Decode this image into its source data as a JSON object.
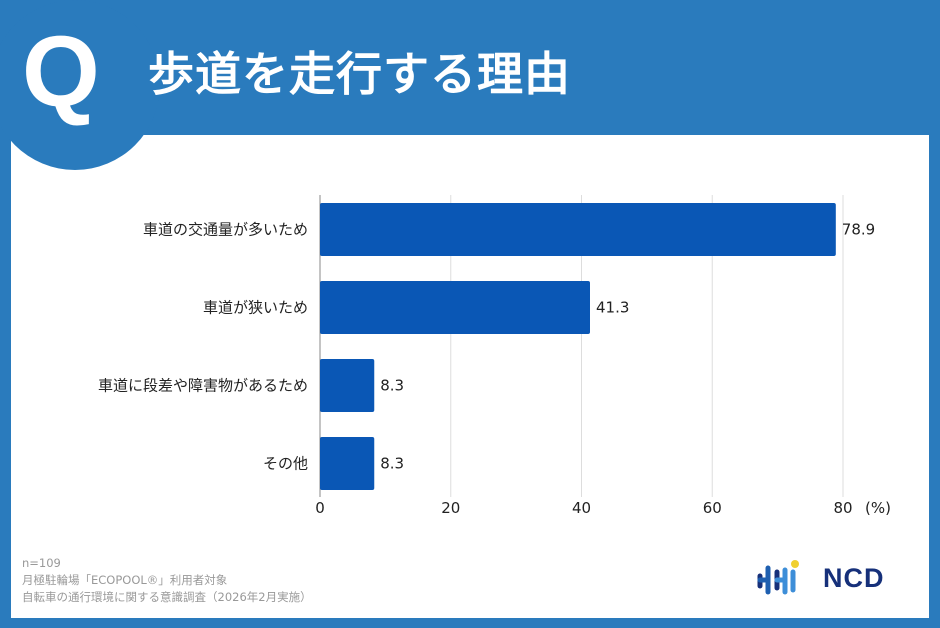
{
  "header": {
    "q_mark": "Q",
    "title": "歩道を走行する理由"
  },
  "chart_data": {
    "type": "bar",
    "orientation": "horizontal",
    "categories": [
      "車道の交通量が多いため",
      "車道が狭いため",
      "車道に段差や障害物があるため",
      "その他"
    ],
    "values": [
      78.9,
      41.3,
      8.3,
      8.3
    ],
    "data_labels": [
      "78.9",
      "41.3",
      "8.3",
      "8.3"
    ],
    "xlim": [
      0,
      80
    ],
    "xticks": [
      "0",
      "20",
      "40",
      "60",
      "80"
    ],
    "xunit": "(%)",
    "grid": true,
    "bar_color": "#0a57b5"
  },
  "footer": {
    "lines": [
      "n=109",
      "月極駐輪場「ECOPOOL®」利用者対象",
      "自転車の通行環境に関する意識調査（2026年2月実施）"
    ]
  },
  "logo": {
    "text": "NCD"
  },
  "colors": {
    "background": "#2a7bbd",
    "bar": "#0a57b5"
  }
}
